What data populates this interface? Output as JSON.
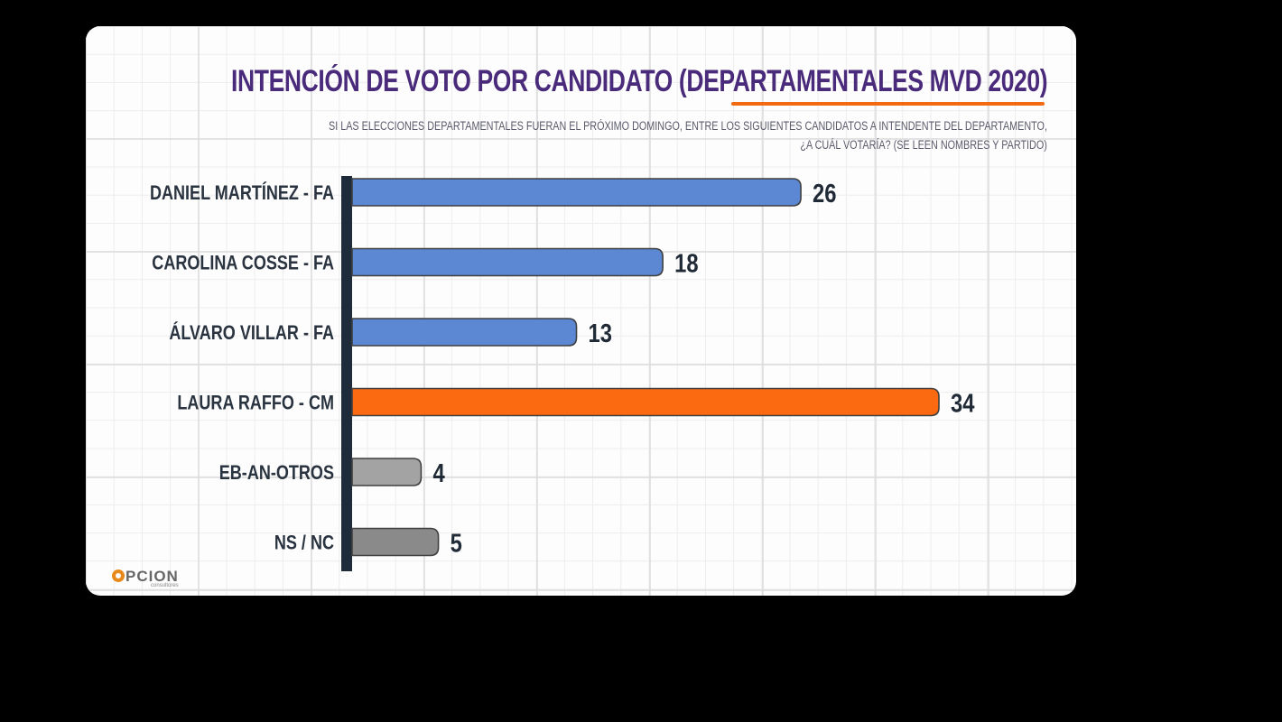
{
  "chart_data": {
    "type": "bar",
    "orientation": "horizontal",
    "title": "INTENCIÓN DE VOTO POR CANDIDATO (DEPARTAMENTALES MVD 2020)",
    "subtitle_line1": "SI LAS ELECCIONES DEPARTAMENTALES FUERAN EL PRÓXIMO DOMINGO, ENTRE LOS SIGUIENTES CANDIDATOS A INTENDENTE DEL DEPARTAMENTO,",
    "subtitle_line2": "¿A CUÁL VOTARÍA? (SE LEEN NOMBRES Y PARTIDO)",
    "categories": [
      "DANIEL MARTÍNEZ  - FA",
      "CAROLINA COSSE - FA",
      "ÁLVARO VILLAR - FA",
      "LAURA RAFFO - CM",
      "EB-AN-OTROS",
      "NS / NC"
    ],
    "values": [
      26,
      18,
      13,
      34,
      4,
      5
    ],
    "colors": [
      "#5b87d3",
      "#5b87d3",
      "#5b87d3",
      "#fb6a11",
      "#a3a3a3",
      "#8a8a8a"
    ],
    "xlim": [
      0,
      40
    ],
    "grid": true,
    "legend": "none"
  },
  "logo": {
    "text": "PCION",
    "subtext": "consultores",
    "color": "#e8891b"
  }
}
